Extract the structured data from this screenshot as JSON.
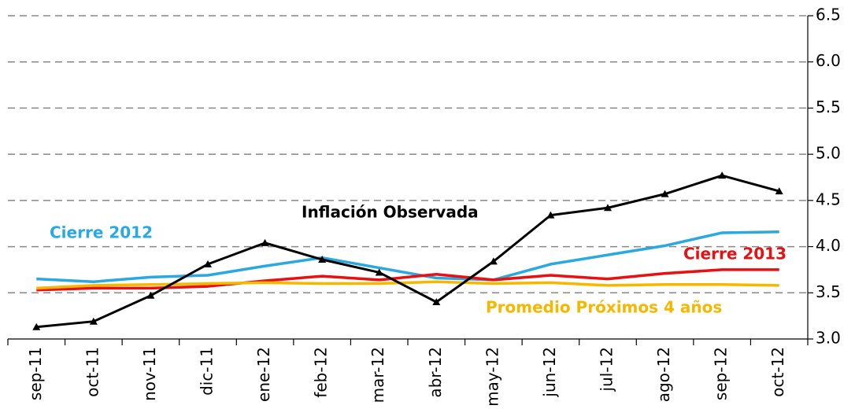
{
  "chart_data": {
    "type": "line",
    "categories": [
      "sep-11",
      "oct-11",
      "nov-11",
      "dic-11",
      "ene-12",
      "feb-12",
      "mar-12",
      "abr-12",
      "may-12",
      "jun-12",
      "jul-12",
      "ago-12",
      "sep-12",
      "oct-12"
    ],
    "series": [
      {
        "name": "Cierre 2012",
        "color": "#2aa8e0",
        "values": [
          3.65,
          3.62,
          3.67,
          3.69,
          3.79,
          3.88,
          3.77,
          3.66,
          3.64,
          3.81,
          3.91,
          4.01,
          4.15,
          4.16
        ]
      },
      {
        "name": "Cierre 2013",
        "color": "#e81010",
        "values": [
          3.53,
          3.55,
          3.55,
          3.57,
          3.63,
          3.68,
          3.64,
          3.7,
          3.64,
          3.69,
          3.65,
          3.71,
          3.75,
          3.75
        ]
      },
      {
        "name": "Promedio Próximos 4 años",
        "color": "#f5b800",
        "values": [
          3.55,
          3.58,
          3.59,
          3.6,
          3.61,
          3.6,
          3.6,
          3.62,
          3.6,
          3.61,
          3.58,
          3.59,
          3.59,
          3.58
        ]
      },
      {
        "name": "Inflación Observada",
        "color": "#000000",
        "marker": "triangle",
        "values": [
          3.13,
          3.19,
          3.47,
          3.81,
          4.04,
          3.86,
          3.72,
          3.4,
          3.84,
          4.34,
          4.42,
          4.57,
          4.77,
          4.6
        ]
      }
    ],
    "ylim": [
      3.0,
      6.5
    ],
    "yticks": [
      {
        "value": 3,
        "label": "3.0"
      },
      {
        "value": 3.5,
        "label": "3.5"
      },
      {
        "value": 4,
        "label": "4.0"
      },
      {
        "value": 4.5,
        "label": "4.5"
      },
      {
        "value": 5,
        "label": "5.0"
      },
      {
        "value": 5.5,
        "label": "5.5"
      },
      {
        "value": 6,
        "label": "6.0"
      },
      {
        "value": 6.5,
        "label": "6.5"
      }
    ],
    "y_axis_side": "right",
    "grid": true
  }
}
